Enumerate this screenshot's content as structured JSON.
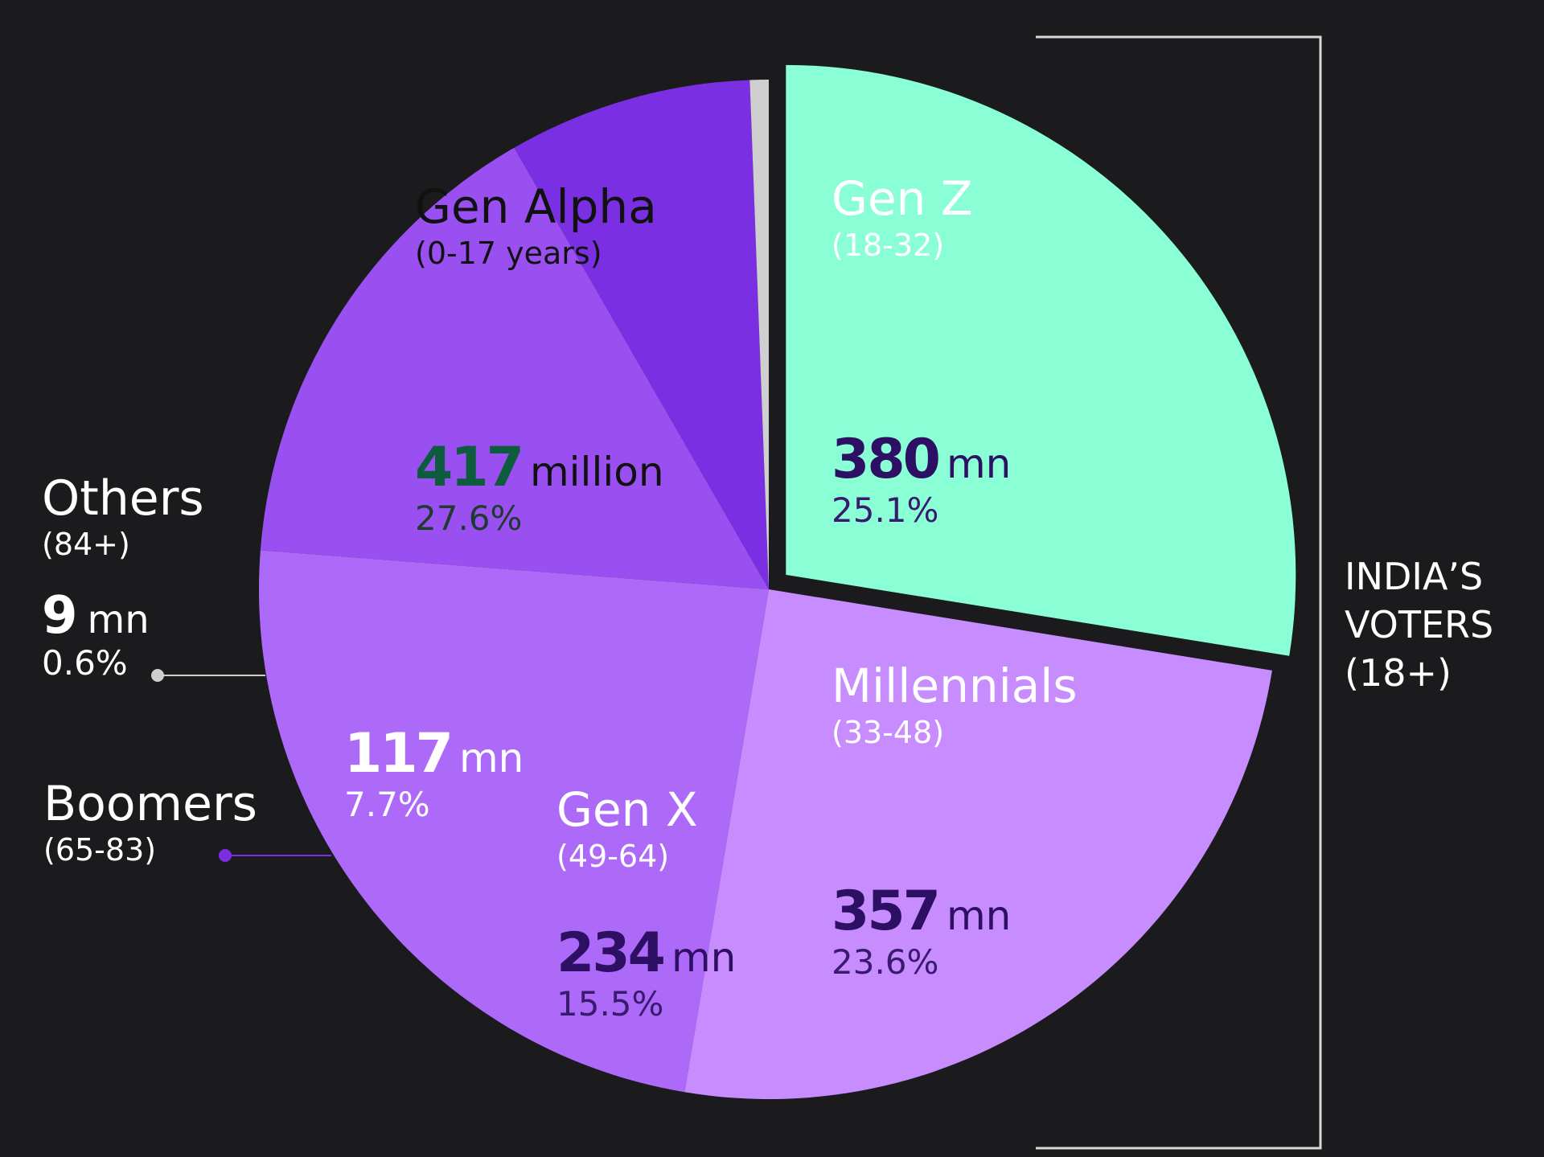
{
  "chart_data": {
    "type": "pie",
    "unit": "mn",
    "slices": [
      {
        "name": "Gen Alpha",
        "age": "(0-17 years)",
        "value": 417,
        "unit_label": "million",
        "percent": "27.6%",
        "color": "#8affd6"
      },
      {
        "name": "Gen Z",
        "age": "(18-32)",
        "value": 380,
        "unit_label": "mn",
        "percent": "25.1%",
        "color": "#c78cfd"
      },
      {
        "name": "Millennials",
        "age": "(33-48)",
        "value": 357,
        "unit_label": "mn",
        "percent": "23.6%",
        "color": "#ad6af8"
      },
      {
        "name": "Gen X",
        "age": "(49-64)",
        "value": 234,
        "unit_label": "mn",
        "percent": "15.5%",
        "color": "#9a50f1"
      },
      {
        "name": "Boomers",
        "age": "(65-83)",
        "value": 117,
        "unit_label": "mn",
        "percent": "7.7%",
        "color": "#7a30e2"
      },
      {
        "name": "Others",
        "age": "(84+)",
        "value": 9,
        "unit_label": "mn",
        "percent": "0.6%",
        "color": "#cfcfcf"
      }
    ],
    "bracket_label": [
      "INDIA’S",
      "VOTERS",
      "(18+)"
    ]
  },
  "colors": {
    "background": "#1b1b1d",
    "alpha_text": "#0d5c3e",
    "purple_text": "#2d0f63",
    "light_text": "#ffffff"
  }
}
